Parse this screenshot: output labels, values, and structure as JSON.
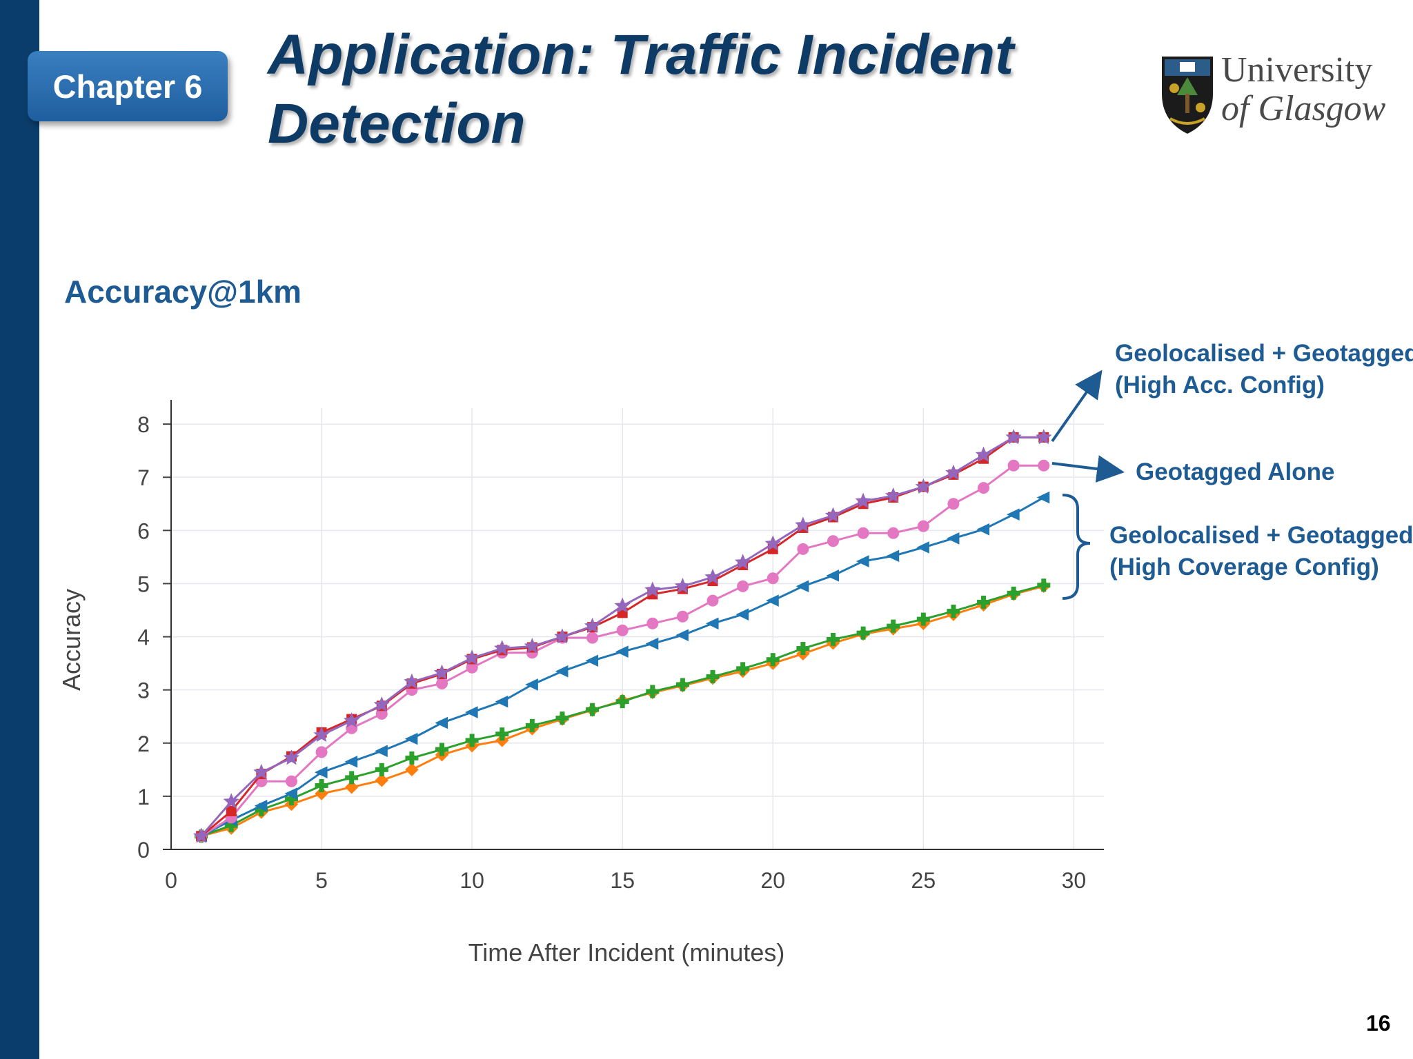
{
  "slide": {
    "chapter": "Chapter 6",
    "title": "Application: Traffic Incident Detection",
    "section_heading": "Accuracy@1km",
    "page_number": "16"
  },
  "logo": {
    "line1": "University",
    "line2": "of Glasgow",
    "icon": "university-crest-icon"
  },
  "annotations": {
    "high_acc": [
      "Geolocalised + Geotagged",
      "(High Acc. Config)"
    ],
    "geotagged_alone": "Geotagged Alone",
    "high_coverage": [
      "Geolocalised + Geotagged",
      "(High Coverage Config)"
    ]
  },
  "colors": {
    "left_bar": "#0a3d6b",
    "title": "#0d3b66",
    "annotation": "#1f5b93"
  },
  "chart_data": {
    "type": "line",
    "title": "",
    "xlabel": "Time After Incident (minutes)",
    "ylabel": "Accuracy",
    "xlim": [
      0,
      31
    ],
    "ylim": [
      0,
      8.3
    ],
    "xticks": [
      0,
      5,
      10,
      15,
      20,
      25,
      30
    ],
    "yticks": [
      0,
      1,
      2,
      3,
      4,
      5,
      6,
      7,
      8
    ],
    "grid": true,
    "legend": "none",
    "x": [
      1,
      2,
      3,
      4,
      5,
      6,
      7,
      8,
      9,
      10,
      11,
      12,
      13,
      14,
      15,
      16,
      17,
      18,
      19,
      20,
      21,
      22,
      23,
      24,
      25,
      26,
      27,
      28,
      29
    ],
    "series": [
      {
        "color": "#ff7f0e",
        "marker": "diamond",
        "values": [
          0.25,
          0.4,
          0.7,
          0.85,
          1.05,
          1.17,
          1.3,
          1.5,
          1.78,
          1.95,
          2.05,
          2.27,
          2.45,
          2.62,
          2.8,
          2.95,
          3.08,
          3.22,
          3.35,
          3.5,
          3.68,
          3.88,
          4.05,
          4.15,
          4.25,
          4.42,
          4.6,
          4.8,
          4.95
        ]
      },
      {
        "color": "#2ca02c",
        "marker": "plus",
        "values": [
          0.25,
          0.45,
          0.75,
          0.95,
          1.2,
          1.35,
          1.5,
          1.72,
          1.88,
          2.05,
          2.17,
          2.33,
          2.47,
          2.63,
          2.78,
          2.97,
          3.1,
          3.25,
          3.4,
          3.57,
          3.78,
          3.95,
          4.07,
          4.2,
          4.33,
          4.48,
          4.65,
          4.82,
          4.97
        ]
      },
      {
        "color": "#1f77b4",
        "marker": "triangle-left",
        "values": [
          0.25,
          0.55,
          0.82,
          1.05,
          1.45,
          1.65,
          1.85,
          2.08,
          2.38,
          2.58,
          2.78,
          3.1,
          3.35,
          3.55,
          3.72,
          3.87,
          4.03,
          4.25,
          4.42,
          4.68,
          4.95,
          5.15,
          5.42,
          5.52,
          5.68,
          5.85,
          6.02,
          6.3,
          6.62
        ]
      },
      {
        "color": "#e377c2",
        "marker": "circle",
        "values": [
          0.25,
          0.6,
          1.28,
          1.28,
          1.83,
          2.28,
          2.55,
          3.0,
          3.12,
          3.42,
          3.7,
          3.7,
          3.98,
          3.98,
          4.12,
          4.25,
          4.38,
          4.68,
          4.95,
          5.1,
          5.65,
          5.8,
          5.95,
          5.95,
          6.08,
          6.5,
          6.8,
          7.22,
          7.22
        ]
      },
      {
        "color": "#d62728",
        "marker": "square",
        "values": [
          0.25,
          0.72,
          1.42,
          1.75,
          2.2,
          2.45,
          2.7,
          3.12,
          3.3,
          3.58,
          3.75,
          3.8,
          4.0,
          4.18,
          4.45,
          4.8,
          4.9,
          5.05,
          5.35,
          5.65,
          6.05,
          6.25,
          6.5,
          6.62,
          6.82,
          7.05,
          7.35,
          7.75,
          7.75
        ]
      },
      {
        "color": "#9467bd",
        "marker": "star",
        "values": [
          0.25,
          0.9,
          1.45,
          1.72,
          2.15,
          2.42,
          2.72,
          3.15,
          3.32,
          3.6,
          3.78,
          3.82,
          4.0,
          4.2,
          4.58,
          4.88,
          4.95,
          5.12,
          5.4,
          5.75,
          6.1,
          6.28,
          6.55,
          6.65,
          6.82,
          7.08,
          7.42,
          7.75,
          7.75
        ]
      }
    ]
  }
}
